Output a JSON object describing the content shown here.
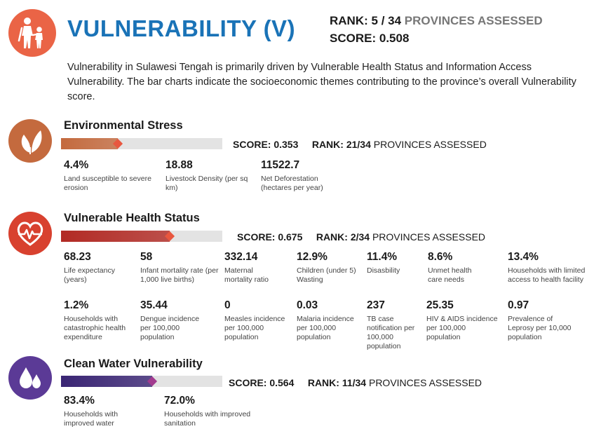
{
  "header": {
    "title": "VULNERABILITY (V)",
    "rank_label": "RANK:",
    "rank_value": "5 / 34",
    "rank_suffix": "PROVINCES ASSESSED",
    "score_label": "SCORE:",
    "score_value": "0.508"
  },
  "intro": "Vulnerability in Sulawesi Tengah is primarily driven by Vulnerable Health Status and Information Access Vulnerability. The bar charts indicate the socioeconomic themes contributing to the province’s overall Vulnerability score.",
  "colors": {
    "title_blue": "#1a73b7",
    "hero_orange": "#ea6446",
    "env_brown": "#c46a3e",
    "health_red": "#b22a24",
    "water_purple": "#3a2574"
  },
  "sections": {
    "env": {
      "title": "Environmental Stress",
      "icon": "leaf-icon",
      "score_text": "SCORE: 0.353",
      "rank_text": "RANK: 21/34",
      "rank_suffix": "PROVINCES ASSESSED",
      "score": 0.353,
      "metrics": [
        {
          "value": "4.4%",
          "label": "Land susceptible to severe erosion"
        },
        {
          "value": "18.88",
          "label": "Livestock Density (per sq km)"
        },
        {
          "value": "11522.7",
          "label": "Net Deforestation (hectares per year)"
        }
      ]
    },
    "health": {
      "title": "Vulnerable Health Status",
      "icon": "heart-pulse-icon",
      "score_text": "SCORE: 0.675",
      "rank_text": "RANK: 2/34",
      "rank_suffix": "PROVINCES ASSESSED",
      "score": 0.675,
      "metrics": [
        {
          "value": "68.23",
          "label": "Life expectancy (years)"
        },
        {
          "value": "58",
          "label": "Infant mortality rate (per 1,000 live births)"
        },
        {
          "value": "332.14",
          "label": "Maternal mortality ratio"
        },
        {
          "value": "12.9%",
          "label": "Children (under 5) Wasting"
        },
        {
          "value": "11.4%",
          "label": "Disasbility"
        },
        {
          "value": "8.6%",
          "label": "Unmet health care needs"
        },
        {
          "value": "13.4%",
          "label": "Households with limited access to health facility"
        },
        {
          "value": "1.2%",
          "label": "Households with catastrophic health expenditure"
        },
        {
          "value": "35.44",
          "label": "Dengue incidence per 100,000 population"
        },
        {
          "value": "0",
          "label": "Measles incidence per 100,000 population"
        },
        {
          "value": "0.03",
          "label": "Malaria incidence per 100,000 population"
        },
        {
          "value": "237",
          "label": "TB case notification per 100,000 population"
        },
        {
          "value": "25.35",
          "label": "HIV & AIDS incidence per 100,000 population"
        },
        {
          "value": "0.97",
          "label": "Prevalence of Leprosy per 10,000 population"
        }
      ]
    },
    "water": {
      "title": "Clean Water Vulnerability",
      "icon": "water-drops-icon",
      "score_text": "SCORE: 0.564",
      "rank_text": "RANK: 11/34",
      "rank_suffix": "PROVINCES ASSESSED",
      "score": 0.564,
      "metrics": [
        {
          "value": "83.4%",
          "label": "Households with improved water"
        },
        {
          "value": "72.0%",
          "label": "Households with improved sanitation"
        }
      ]
    }
  }
}
